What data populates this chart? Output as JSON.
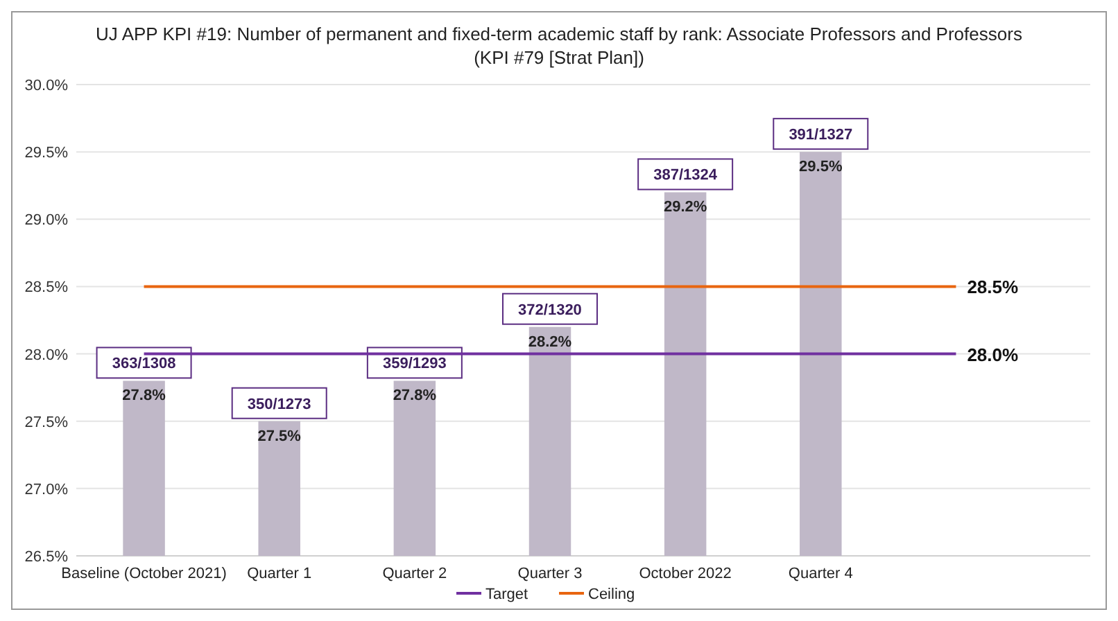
{
  "chart_data": {
    "type": "bar",
    "title": "UJ APP KPI #19: Number of permanent and fixed-term academic staff by rank: Associate Professors and Professors",
    "subtitle": "(KPI #79 [Strat Plan])",
    "categories": [
      "Baseline (October 2021)",
      "Quarter 1",
      "Quarter 2",
      "Quarter 3",
      "October 2022",
      "Quarter 4",
      null
    ],
    "series": [
      {
        "color": "#c0b8c8",
        "values": [
          27.8,
          27.5,
          27.8,
          28.2,
          29.2,
          29.5,
          null
        ],
        "value_labels": [
          "27.8%",
          "27.5%",
          "27.8%",
          "28.2%",
          "29.2%",
          "29.5%",
          null
        ]
      },
      {
        "type": "line",
        "name": "Target",
        "color": "#7030a0",
        "values": [
          28.0,
          28.0,
          28.0,
          28.0,
          28.0,
          28.0,
          28.0
        ],
        "value_labels": [
          null,
          null,
          null,
          null,
          null,
          null,
          "28.0%"
        ]
      },
      {
        "type": "line",
        "name": "Ceiling",
        "color": "#e8650f",
        "values": [
          28.5,
          28.5,
          28.5,
          28.5,
          28.5,
          28.5,
          28.5
        ],
        "value_labels": [
          null,
          null,
          null,
          null,
          null,
          null,
          "28.5%"
        ]
      }
    ],
    "annotations": [
      {
        "text": "363/1308",
        "x": "Baseline (October 2021)",
        "y": 27.8
      },
      {
        "text": "350/1273",
        "x": "Quarter 1",
        "y": 27.5
      },
      {
        "text": "359/1293",
        "x": "Quarter 2",
        "y": 27.8
      },
      {
        "text": "372/1320",
        "x": "Quarter 3",
        "y": 28.2
      },
      {
        "text": "387/1324",
        "x": "October 2022",
        "y": 29.2
      },
      {
        "text": "391/1327",
        "x": "Quarter 4",
        "y": 29.5
      }
    ],
    "ylim": [
      26.5,
      30.0
    ],
    "yticks": [
      {
        "value": 26.5,
        "label": "26.5%"
      },
      {
        "value": 27.0,
        "label": "27.0%"
      },
      {
        "value": 27.5,
        "label": "27.5%"
      },
      {
        "value": 28.0,
        "label": "28.0%"
      },
      {
        "value": 28.5,
        "label": "28.5%"
      },
      {
        "value": 29.0,
        "label": "29.0%"
      },
      {
        "value": 29.5,
        "label": "29.5%"
      },
      {
        "value": 30.0,
        "label": "30.0%"
      }
    ],
    "grid": "y",
    "legend": "bottom"
  }
}
